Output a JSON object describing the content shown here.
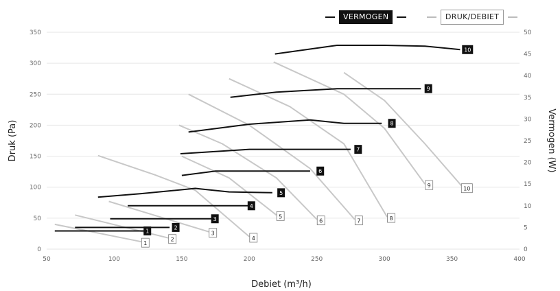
{
  "chart_data": {
    "type": "line",
    "legend": {
      "power_label": "VERMOGEN",
      "pressure_label": "DRUK/DEBIET",
      "position": "top-right"
    },
    "xlabel": "Debiet (m³/h)",
    "ylabel_left": "Druk (Pa)",
    "ylabel_right": "Vermogen (W)",
    "xlim": [
      50,
      400
    ],
    "ylim_left": [
      0,
      350
    ],
    "ylim_right": [
      0,
      50
    ],
    "x_ticks": [
      "50",
      "100",
      "150",
      "200",
      "250",
      "300",
      "350",
      "400"
    ],
    "y_left_ticks": [
      "0",
      "50",
      "100",
      "150",
      "200",
      "250",
      "300",
      "350"
    ],
    "y_right_ticks": [
      "0",
      "5",
      "10",
      "15",
      "20",
      "25",
      "30",
      "35",
      "40",
      "45",
      "50"
    ],
    "grid": "horizontal",
    "colors": {
      "power": "#111111",
      "pressure": "#c8c8c8",
      "grid": "#e6e6e6"
    },
    "pressure_series": [
      {
        "name": "1",
        "points": [
          [
            56,
            40
          ],
          [
            120,
            12
          ]
        ]
      },
      {
        "name": "2",
        "points": [
          [
            71,
            55
          ],
          [
            140,
            18
          ]
        ]
      },
      {
        "name": "3",
        "points": [
          [
            96,
            77
          ],
          [
            170,
            28
          ]
        ]
      },
      {
        "name": "4",
        "points": [
          [
            88,
            151
          ],
          [
            130,
            120
          ],
          [
            160,
            95
          ],
          [
            200,
            20
          ]
        ]
      },
      {
        "name": "5",
        "points": [
          [
            150,
            150
          ],
          [
            185,
            115
          ],
          [
            220,
            55
          ]
        ]
      },
      {
        "name": "6",
        "points": [
          [
            148,
            200
          ],
          [
            180,
            170
          ],
          [
            220,
            115
          ],
          [
            250,
            48
          ]
        ]
      },
      {
        "name": "7",
        "points": [
          [
            155,
            250
          ],
          [
            200,
            200
          ],
          [
            245,
            130
          ],
          [
            278,
            48
          ]
        ]
      },
      {
        "name": "8",
        "points": [
          [
            185,
            275
          ],
          [
            230,
            230
          ],
          [
            270,
            170
          ],
          [
            302,
            52
          ]
        ]
      },
      {
        "name": "9",
        "points": [
          [
            218,
            302
          ],
          [
            270,
            250
          ],
          [
            300,
            195
          ],
          [
            330,
            105
          ]
        ]
      },
      {
        "name": "10",
        "points": [
          [
            270,
            285
          ],
          [
            300,
            240
          ],
          [
            330,
            170
          ],
          [
            358,
            100
          ]
        ]
      }
    ],
    "power_series": [
      {
        "name": "1",
        "label_x": 122,
        "points": [
          [
            56,
            4.2
          ],
          [
            122,
            4.2
          ]
        ]
      },
      {
        "name": "2",
        "label_x": 143,
        "points": [
          [
            71,
            5.0
          ],
          [
            141,
            5.0
          ]
        ]
      },
      {
        "name": "3",
        "label_x": 172,
        "points": [
          [
            97,
            7.0
          ],
          [
            172,
            7.0
          ]
        ]
      },
      {
        "name": "4",
        "label_x": 199,
        "points": [
          [
            110,
            10.0
          ],
          [
            199,
            10.0
          ]
        ]
      },
      {
        "name": "5",
        "label_x": 221,
        "points": [
          [
            88,
            12.0
          ],
          [
            120,
            12.8
          ],
          [
            160,
            14.0
          ],
          [
            185,
            13.2
          ],
          [
            217,
            13.0
          ]
        ]
      },
      {
        "name": "6",
        "label_x": 250,
        "points": [
          [
            150,
            17.0
          ],
          [
            175,
            18.0
          ],
          [
            210,
            18.0
          ],
          [
            245,
            18.0
          ]
        ]
      },
      {
        "name": "7",
        "label_x": 278,
        "points": [
          [
            149,
            22.0
          ],
          [
            200,
            23.0
          ],
          [
            275,
            23.0
          ]
        ]
      },
      {
        "name": "8",
        "label_x": 303,
        "points": [
          [
            155,
            27.0
          ],
          [
            200,
            28.8
          ],
          [
            245,
            29.8
          ],
          [
            270,
            29.0
          ],
          [
            298,
            29.0
          ]
        ]
      },
      {
        "name": "9",
        "label_x": 330,
        "points": [
          [
            186,
            35.0
          ],
          [
            220,
            36.2
          ],
          [
            265,
            37.0
          ],
          [
            327,
            37.0
          ]
        ]
      },
      {
        "name": "10",
        "label_x": 359,
        "points": [
          [
            219,
            45.0
          ],
          [
            265,
            47.0
          ],
          [
            300,
            47.0
          ],
          [
            330,
            46.8
          ],
          [
            356,
            46.0
          ]
        ]
      }
    ]
  }
}
